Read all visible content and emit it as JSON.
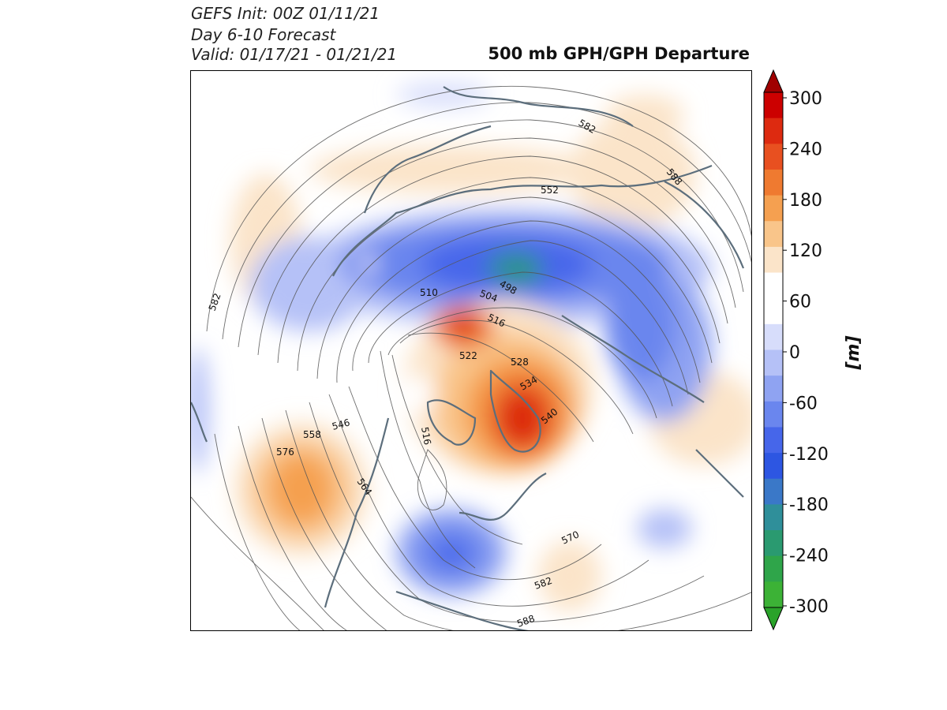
{
  "header": {
    "line1": "GEFS Init: 00Z 01/11/21",
    "line2": "Day 6-10 Forecast",
    "line3": "Valid: 01/17/21 - 01/21/21",
    "title": "500 mb GPH/GPH Departure"
  },
  "colorbar": {
    "unit_label": "[m]",
    "tick_labels": [
      "300",
      "240",
      "180",
      "120",
      "60",
      "0",
      "-60",
      "-120",
      "-180",
      "-240",
      "-300"
    ],
    "colors": [
      "#cc0000",
      "#dd2a10",
      "#e85020",
      "#ef7a30",
      "#f5a050",
      "#f9c58a",
      "#fbe4c9",
      "#ffffff",
      "#ffffff",
      "#d7ddfb",
      "#b5c1f7",
      "#8fa3f2",
      "#6a86ee",
      "#4666ea",
      "#2d56e2",
      "#3a78c8",
      "#2f8f9a",
      "#2a9a70",
      "#2fa54a",
      "#3cb236"
    ],
    "cap_top": "#a00000",
    "cap_bottom": "#2aa32a"
  },
  "map": {
    "contour_labels": [
      {
        "text": "582"
      },
      {
        "text": "588"
      },
      {
        "text": "552"
      },
      {
        "text": "498"
      },
      {
        "text": "504"
      },
      {
        "text": "510"
      },
      {
        "text": "516"
      },
      {
        "text": "522"
      },
      {
        "text": "528"
      },
      {
        "text": "534"
      },
      {
        "text": "540"
      },
      {
        "text": "546"
      },
      {
        "text": "558"
      },
      {
        "text": "576"
      },
      {
        "text": "564"
      },
      {
        "text": "516"
      },
      {
        "text": "582"
      },
      {
        "text": "570"
      },
      {
        "text": "582"
      },
      {
        "text": "588"
      }
    ]
  }
}
